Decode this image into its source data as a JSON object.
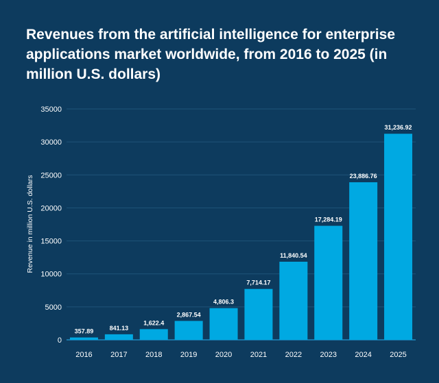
{
  "chart_data": {
    "type": "bar",
    "title": "Revenues from the artificial intelligence for enterprise applications market worldwide, from 2016 to 2025 (in million U.S. dollars)",
    "xlabel": "",
    "ylabel": "Revenue in million U.S. dollars",
    "categories": [
      "2016",
      "2017",
      "2018",
      "2019",
      "2020",
      "2021",
      "2022",
      "2023",
      "2024",
      "2025"
    ],
    "values": [
      357.89,
      841.13,
      1622.4,
      2867.54,
      4806.3,
      7714.17,
      11840.54,
      17284.19,
      23886.76,
      31236.92
    ],
    "data_labels": [
      "357.89",
      "841.13",
      "1,622.4",
      "2,867.54",
      "4,806.3",
      "7,714.17",
      "11,840.54",
      "17,284.19",
      "23,886.76",
      "31,236.92"
    ],
    "ylim": [
      0,
      35000
    ],
    "yticks": [
      0,
      5000,
      10000,
      15000,
      20000,
      25000,
      30000,
      35000
    ],
    "ytick_labels": [
      "0",
      "5000",
      "10000",
      "15000",
      "20000",
      "25000",
      "30000",
      "35000"
    ],
    "grid": true,
    "legend": "none",
    "colors": {
      "background": "#0d3b5e",
      "bar": "#00a9e2",
      "grid": "#1f5479"
    }
  }
}
